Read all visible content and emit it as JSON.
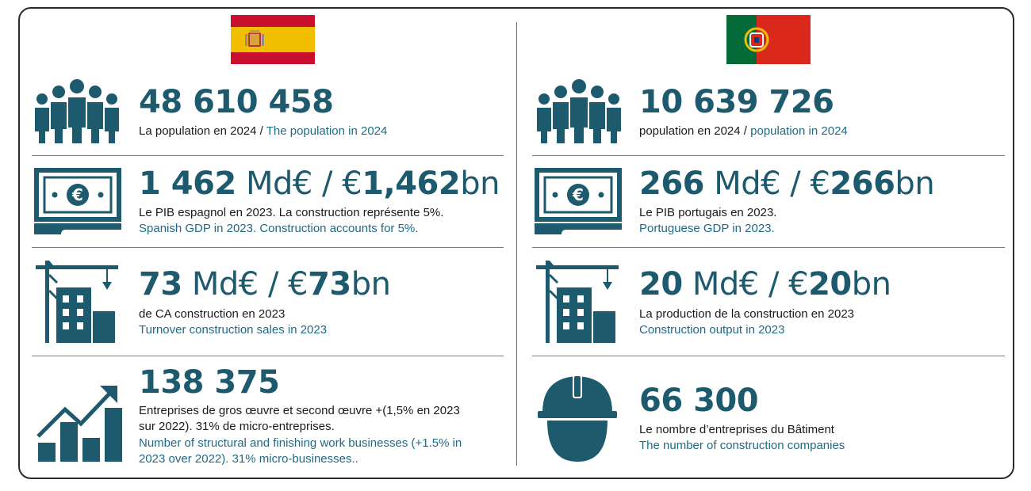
{
  "colors": {
    "accent": "#1d5a6d",
    "english_text": "#1f6a86",
    "spain_red": "#c8102e",
    "spain_yellow": "#f1bf00",
    "portugal_green": "#046a38",
    "portugal_red": "#da291c"
  },
  "spain": {
    "flag_icon": "spain-flag",
    "population": {
      "value": "48 610 458",
      "fr": "La population en 2024",
      "sep": " / ",
      "en": "The population in 2024"
    },
    "gdp": {
      "bold1": "1 462",
      "mid": " Md€ / €",
      "bold2": "1,462",
      "suffix": "bn",
      "fr": "Le PIB espagnol en 2023. La construction représente 5%.",
      "en": "Spanish GDP in 2023. Construction accounts for 5%."
    },
    "turnover": {
      "bold1": "73",
      "mid": " Md€ / €",
      "bold2": "73",
      "suffix": "bn",
      "fr": "de CA construction en 2023",
      "en": "Turnover construction sales in 2023"
    },
    "businesses": {
      "value": "138 375",
      "fr1": "Entreprises de gros œuvre et second œuvre +(1,5% en 2023",
      "fr2": "sur 2022). 31% de micro-entreprises.",
      "en1": "Number of structural and finishing work businesses (+1.5% in",
      "en2": "2023 over 2022). 31% micro-businesses.."
    }
  },
  "portugal": {
    "flag_icon": "portugal-flag",
    "population": {
      "value": "10 639 726",
      "fr": "population en 2024",
      "sep": " / ",
      "en": "population in 2024"
    },
    "gdp": {
      "bold1": "266",
      "mid": " Md€ / €",
      "bold2": "266",
      "suffix": "bn",
      "fr": "Le PIB portugais en 2023.",
      "en": "Portuguese GDP in 2023."
    },
    "output": {
      "bold1": "20",
      "mid": " Md€ / €",
      "bold2": "20",
      "suffix": "bn",
      "fr": "La production de la construction en 2023",
      "en": "Construction output in 2023"
    },
    "companies": {
      "value": "66 300",
      "fr": "Le nombre d’entreprises du Bâtiment",
      "en": "The number of construction companies"
    }
  }
}
